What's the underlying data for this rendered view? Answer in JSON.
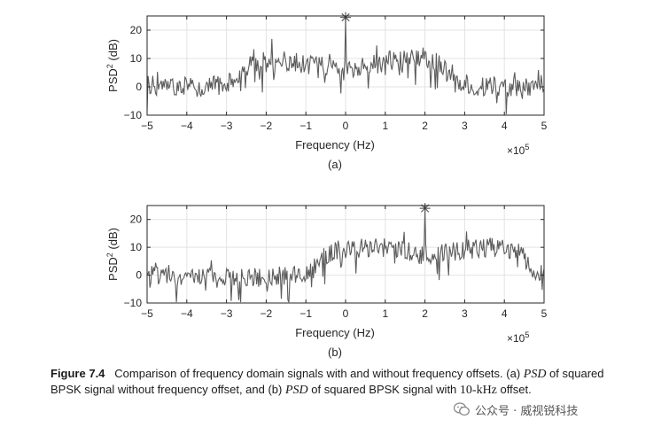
{
  "chart_data": [
    {
      "type": "line",
      "panel_label": "(a)",
      "xlabel": "Frequency (Hz)",
      "ylabel_main": "PSD",
      "ylabel_sup": "2",
      "ylabel_unit": " (dB)",
      "x_multiplier_base": "×10",
      "x_multiplier_exp": "5",
      "xlim": [
        -5,
        5
      ],
      "ylim": [
        -10,
        25
      ],
      "x_ticks": [
        -5,
        -4,
        -3,
        -2,
        -1,
        0,
        1,
        2,
        3,
        4,
        5
      ],
      "y_ticks": [
        -10,
        0,
        10,
        20
      ],
      "x_tick_labels": [
        "−5",
        "−4",
        "−3",
        "−2",
        "−1",
        "0",
        "1",
        "2",
        "3",
        "4",
        "5"
      ],
      "y_tick_labels": [
        "−10",
        "0",
        "10",
        "20"
      ],
      "grid": true,
      "series": [
        {
          "x": [
            -5.0,
            -4.5,
            -4.0,
            -3.5,
            -3.0,
            -2.75,
            -2.5,
            -2.25,
            -2.0,
            -1.5,
            -1.0,
            -0.5,
            -0.25,
            0.0,
            0.25,
            0.5,
            1.0,
            1.5,
            2.0,
            2.25,
            2.5,
            2.75,
            3.0,
            3.5,
            4.0,
            4.5,
            5.0
          ],
          "y": [
            1,
            0,
            0,
            0,
            1,
            3,
            7,
            9,
            9,
            9,
            8,
            7,
            6,
            5,
            6,
            7,
            9,
            10,
            10,
            9,
            7,
            3,
            1,
            0,
            0,
            0,
            1
          ]
        }
      ],
      "peak": {
        "x": 0,
        "y": 24.5
      }
    },
    {
      "type": "line",
      "panel_label": "(b)",
      "xlabel": "Frequency (Hz)",
      "ylabel_main": "PSD",
      "ylabel_sup": "2",
      "ylabel_unit": " (dB)",
      "x_multiplier_base": "×10",
      "x_multiplier_exp": "5",
      "xlim": [
        -5,
        5
      ],
      "ylim": [
        -10,
        25
      ],
      "x_ticks": [
        -5,
        -4,
        -3,
        -2,
        -1,
        0,
        1,
        2,
        3,
        4,
        5
      ],
      "y_ticks": [
        -10,
        0,
        10,
        20
      ],
      "x_tick_labels": [
        "−5",
        "−4",
        "−3",
        "−2",
        "−1",
        "0",
        "1",
        "2",
        "3",
        "4",
        "5"
      ],
      "y_tick_labels": [
        "−10",
        "0",
        "10",
        "20"
      ],
      "grid": true,
      "series": [
        {
          "x": [
            -5.0,
            -4.0,
            -3.0,
            -2.0,
            -1.0,
            -0.75,
            -0.5,
            -0.25,
            0.0,
            0.5,
            1.0,
            1.5,
            1.75,
            2.0,
            2.25,
            2.5,
            3.0,
            3.5,
            4.0,
            4.25,
            4.5,
            4.75,
            5.0
          ],
          "y": [
            0,
            -1,
            -1,
            -1,
            0,
            3,
            7,
            9,
            9,
            10,
            10,
            9,
            8,
            7,
            7,
            8,
            9,
            10,
            10,
            9,
            6,
            2,
            0
          ]
        }
      ],
      "peak": {
        "x": 2,
        "y": 24
      }
    }
  ],
  "caption": {
    "figure_label": "Figure 7.4",
    "text_1": "Comparison of frequency domain signals with and without frequency offsets. (a) ",
    "psd_1": "PSD",
    "text_2": " of squared BPSK signal without frequency offset, and (b) ",
    "psd_2": "PSD",
    "text_3": " of squared BPSK signal with ",
    "offset_value": "10-kHz",
    "text_4": " offset."
  },
  "watermark": {
    "text": "公众号 · 威视锐科技",
    "icon": "wechat-icon"
  },
  "colors": {
    "trace": "#5c5c5c",
    "grid": "#e3e3e3",
    "axis": "#262626",
    "text": "#262626"
  }
}
